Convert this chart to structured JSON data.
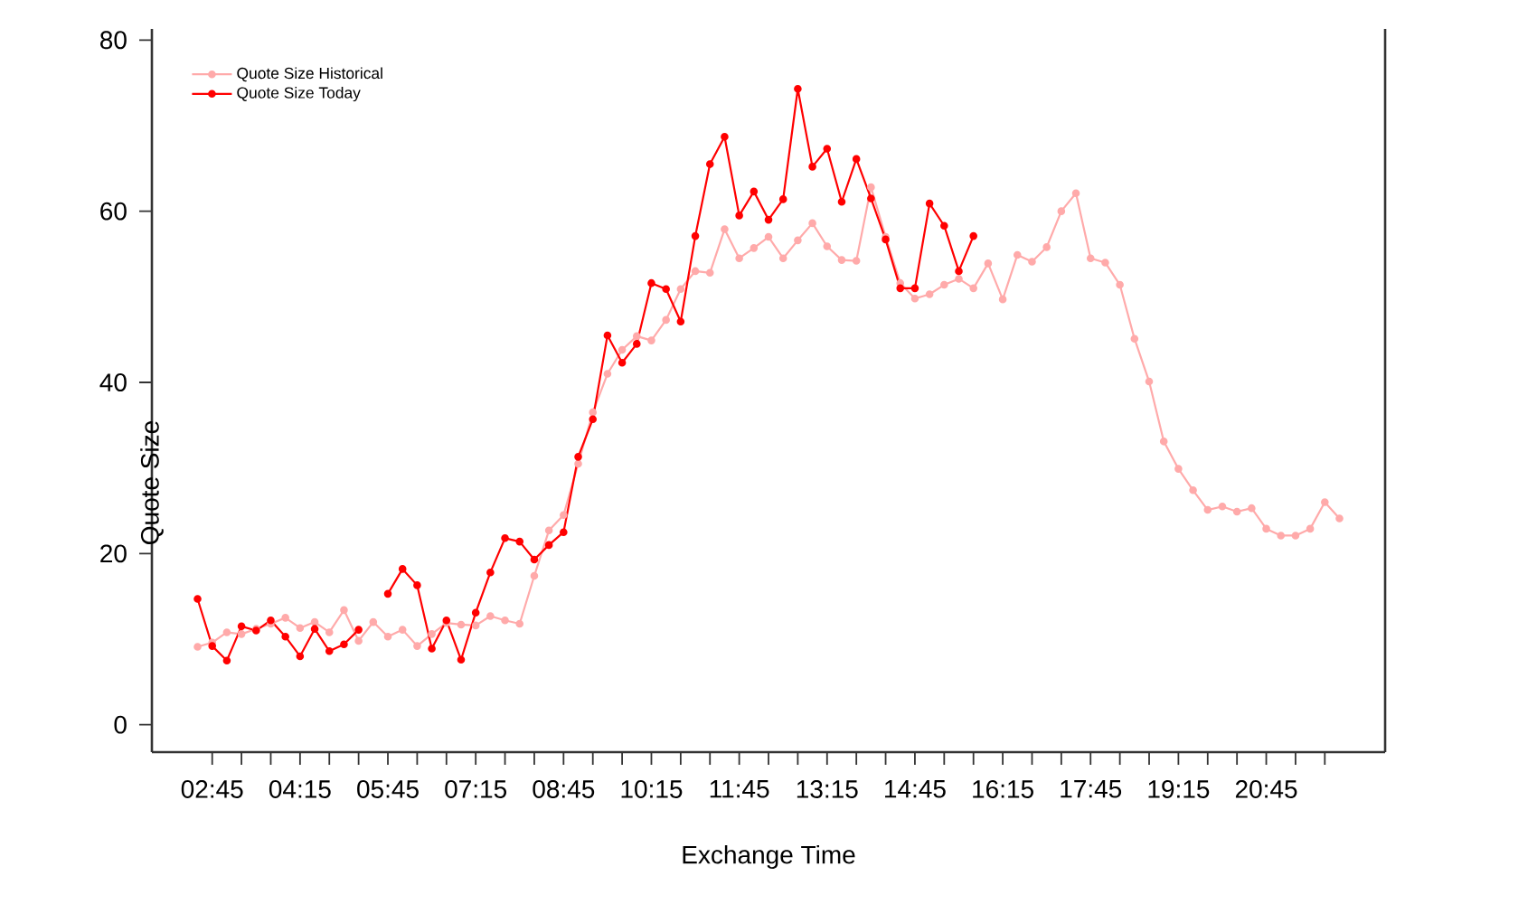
{
  "chart_data": {
    "type": "line",
    "xlabel": "Exchange Time",
    "ylabel": "Quote Size",
    "x": [
      2.5,
      2.75,
      3,
      3.25,
      3.5,
      3.75,
      4,
      4.25,
      4.5,
      4.75,
      5,
      5.25,
      5.5,
      5.75,
      6,
      6.25,
      6.5,
      6.75,
      7,
      7.25,
      7.5,
      7.75,
      8,
      8.25,
      8.5,
      8.75,
      9,
      9.25,
      9.5,
      9.75,
      10,
      10.25,
      10.5,
      10.75,
      11,
      11.25,
      11.5,
      11.75,
      12,
      12.25,
      12.5,
      12.75,
      13,
      13.25,
      13.5,
      13.75,
      14,
      14.25,
      14.5,
      14.75,
      15,
      15.25,
      15.5,
      15.75,
      16,
      16.25,
      16.5,
      16.75,
      17,
      17.25,
      17.5,
      17.75,
      18,
      18.25,
      18.5,
      18.75,
      19,
      19.25,
      19.5,
      19.75,
      20,
      20.25,
      20.5,
      20.75,
      21,
      21.25,
      21.5,
      21.75,
      22
    ],
    "series": [
      {
        "name": "Quote Size Historical",
        "color": "#ffaaaa",
        "values": [
          9.1,
          9.6,
          10.8,
          10.6,
          11.2,
          11.8,
          12.5,
          11.3,
          12.0,
          10.8,
          13.4,
          9.8,
          12.0,
          10.3,
          11.1,
          9.2,
          10.6,
          11.9,
          11.7,
          11.6,
          12.7,
          12.2,
          11.8,
          17.4,
          22.7,
          24.5,
          30.5,
          36.5,
          41.0,
          43.8,
          45.4,
          44.9,
          47.3,
          50.9,
          53.0,
          52.8,
          57.9,
          54.5,
          55.7,
          57.0,
          54.5,
          56.6,
          58.6,
          55.9,
          54.3,
          54.2,
          62.8,
          57.0,
          51.6,
          49.8,
          50.3,
          51.4,
          52.1,
          51.0,
          53.9,
          49.7,
          54.9,
          54.1,
          55.8,
          60.0,
          62.1,
          54.5,
          54.0,
          51.4,
          45.1,
          40.1,
          33.1,
          29.9,
          27.4,
          25.1,
          25.5,
          24.9,
          25.3,
          22.9,
          22.1,
          22.1,
          22.9,
          26.0,
          24.1
        ]
      },
      {
        "name": "Quote Size Today",
        "color": "#ff0000",
        "values": [
          14.7,
          9.2,
          7.5,
          11.5,
          11.0,
          12.2,
          10.3,
          8.0,
          11.2,
          8.6,
          9.4,
          11.1,
          null,
          15.3,
          18.2,
          16.3,
          8.9,
          12.2,
          7.6,
          13.1,
          17.8,
          21.8,
          21.4,
          19.3,
          21.0,
          22.5,
          31.3,
          35.7,
          45.5,
          42.3,
          44.5,
          51.6,
          50.9,
          47.1,
          57.1,
          65.5,
          68.7,
          59.5,
          62.3,
          59.0,
          61.4,
          74.3,
          65.2,
          67.3,
          61.1,
          66.1,
          61.5,
          56.7,
          51.0,
          51.0,
          60.9,
          58.3,
          53.0,
          57.1,
          null,
          null,
          null,
          null,
          null,
          null,
          null,
          null,
          null,
          null,
          null,
          null,
          null,
          null,
          null,
          null,
          null,
          null,
          null,
          null,
          null,
          null,
          null,
          null,
          null
        ]
      }
    ],
    "xlim": [
      1.72,
      22.78
    ],
    "xticks": [
      {
        "value": 2.75,
        "label": "02:45"
      },
      {
        "value": 3.25,
        "label": null
      },
      {
        "value": 3.75,
        "label": null
      },
      {
        "value": 4.25,
        "label": "04:15"
      },
      {
        "value": 4.75,
        "label": null
      },
      {
        "value": 5.25,
        "label": null
      },
      {
        "value": 5.75,
        "label": "05:45"
      },
      {
        "value": 6.25,
        "label": null
      },
      {
        "value": 6.75,
        "label": null
      },
      {
        "value": 7.25,
        "label": "07:15"
      },
      {
        "value": 7.75,
        "label": null
      },
      {
        "value": 8.25,
        "label": null
      },
      {
        "value": 8.75,
        "label": "08:45"
      },
      {
        "value": 9.25,
        "label": null
      },
      {
        "value": 9.75,
        "label": null
      },
      {
        "value": 10.25,
        "label": "10:15"
      },
      {
        "value": 10.75,
        "label": null
      },
      {
        "value": 11.25,
        "label": null
      },
      {
        "value": 11.75,
        "label": "11:45"
      },
      {
        "value": 12.25,
        "label": null
      },
      {
        "value": 12.75,
        "label": null
      },
      {
        "value": 13.25,
        "label": "13:15"
      },
      {
        "value": 13.75,
        "label": null
      },
      {
        "value": 14.25,
        "label": null
      },
      {
        "value": 14.75,
        "label": "14:45"
      },
      {
        "value": 15.25,
        "label": null
      },
      {
        "value": 15.75,
        "label": null
      },
      {
        "value": 16.25,
        "label": "16:15"
      },
      {
        "value": 16.75,
        "label": null
      },
      {
        "value": 17.25,
        "label": null
      },
      {
        "value": 17.75,
        "label": "17:45"
      },
      {
        "value": 18.25,
        "label": null
      },
      {
        "value": 18.75,
        "label": null
      },
      {
        "value": 19.25,
        "label": "19:15"
      },
      {
        "value": 19.75,
        "label": null
      },
      {
        "value": 20.25,
        "label": null
      },
      {
        "value": 20.75,
        "label": "20:45"
      },
      {
        "value": 21.25,
        "label": null
      },
      {
        "value": 21.75,
        "label": null
      }
    ],
    "ylim": [
      -3.2,
      81.3
    ],
    "yticks": [
      0,
      20,
      40,
      60,
      80
    ],
    "legend": "top left",
    "marker": "circle"
  }
}
